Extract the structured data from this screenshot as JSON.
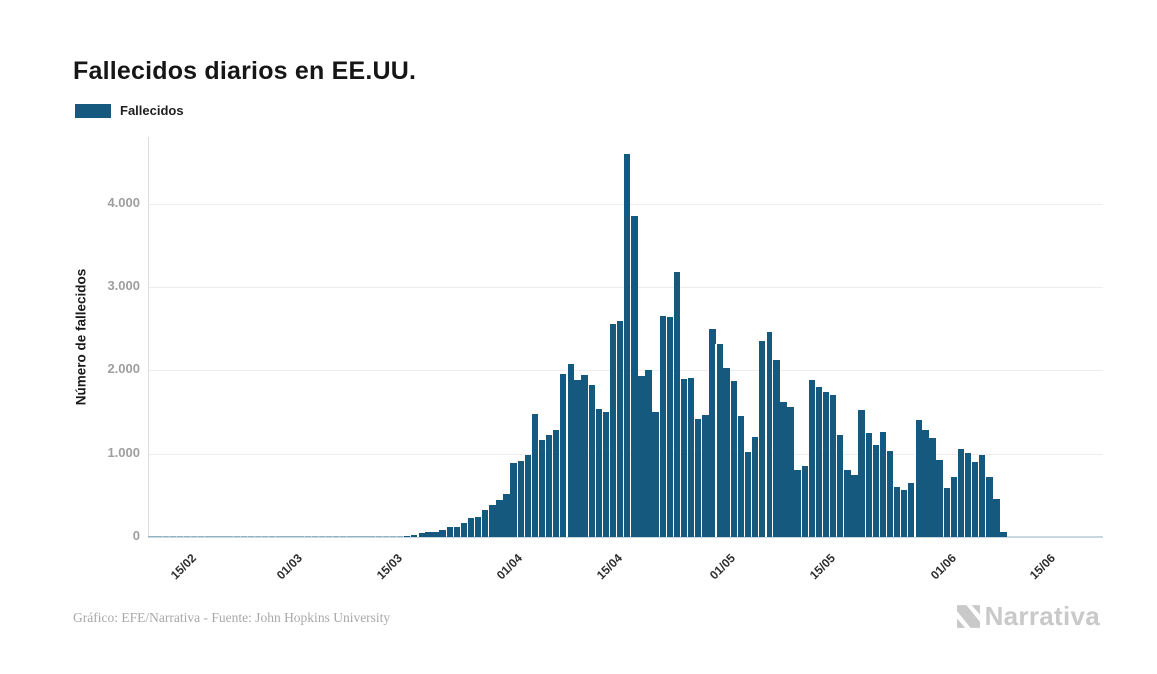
{
  "title": "Fallecidos diarios en EE.UU.",
  "legend": {
    "label": "Fallecidos",
    "color": "#15597e"
  },
  "footer": {
    "credit": "Gráfico: EFE/Narrativa - Fuente: John Hopkins University"
  },
  "branding": {
    "logo_text": "Narrativa",
    "logo_icon": "narrativa-n-mark",
    "color": "#c9c9c9"
  },
  "chart_data": {
    "type": "bar",
    "title": "Fallecidos diarios en EE.UU.",
    "xlabel": "",
    "ylabel": "Número de fallecidos",
    "series_name": "Fallecidos",
    "bar_color": "#15597e",
    "grid": true,
    "legend_position": "top-left",
    "ylim": [
      0,
      4800
    ],
    "ytick_values": [
      0,
      1000,
      2000,
      3000,
      4000
    ],
    "ytick_labels": [
      "0",
      "1.000",
      "2.000",
      "3.000",
      "4.000"
    ],
    "xticks": [
      {
        "label": "15/02",
        "day": 6
      },
      {
        "label": "01/03",
        "day": 21
      },
      {
        "label": "15/03",
        "day": 35
      },
      {
        "label": "01/04",
        "day": 52
      },
      {
        "label": "15/04",
        "day": 66
      },
      {
        "label": "01/05",
        "day": 82
      },
      {
        "label": "15/05",
        "day": 96
      },
      {
        "label": "01/06",
        "day": 113
      },
      {
        "label": "15/06",
        "day": 127
      }
    ],
    "dates": [
      "09/02",
      "10/02",
      "11/02",
      "12/02",
      "13/02",
      "14/02",
      "15/02",
      "16/02",
      "17/02",
      "18/02",
      "19/02",
      "20/02",
      "21/02",
      "22/02",
      "23/02",
      "24/02",
      "25/02",
      "26/02",
      "27/02",
      "28/02",
      "29/02",
      "01/03",
      "02/03",
      "03/03",
      "04/03",
      "05/03",
      "06/03",
      "07/03",
      "08/03",
      "09/03",
      "10/03",
      "11/03",
      "12/03",
      "13/03",
      "14/03",
      "15/03",
      "16/03",
      "17/03",
      "18/03",
      "19/03",
      "20/03",
      "21/03",
      "22/03",
      "23/03",
      "24/03",
      "25/03",
      "26/03",
      "27/03",
      "28/03",
      "29/03",
      "30/03",
      "31/03",
      "01/04",
      "02/04",
      "03/04",
      "04/04",
      "05/04",
      "06/04",
      "07/04",
      "08/04",
      "09/04",
      "10/04",
      "11/04",
      "12/04",
      "13/04",
      "14/04",
      "15/04",
      "16/04",
      "17/04",
      "18/04",
      "19/04",
      "20/04",
      "21/04",
      "22/04",
      "23/04",
      "24/04",
      "25/04",
      "26/04",
      "27/04",
      "28/04",
      "29/04",
      "30/04",
      "01/05",
      "02/05",
      "03/05",
      "04/05",
      "05/05",
      "06/05",
      "07/05",
      "08/05",
      "09/05",
      "10/05",
      "11/05",
      "12/05",
      "13/05",
      "14/05",
      "15/05",
      "16/05",
      "17/05",
      "18/05",
      "19/05",
      "20/05",
      "21/05",
      "22/05",
      "23/05",
      "24/05",
      "25/05",
      "26/05",
      "27/05",
      "28/05",
      "29/05",
      "30/05",
      "31/05",
      "01/06",
      "02/06",
      "03/06",
      "04/06",
      "05/06",
      "06/06",
      "07/06",
      "08/06"
    ],
    "values": [
      0,
      0,
      0,
      0,
      0,
      0,
      0,
      0,
      0,
      0,
      0,
      0,
      0,
      0,
      0,
      0,
      0,
      0,
      0,
      0,
      1,
      1,
      4,
      3,
      2,
      1,
      3,
      3,
      4,
      4,
      6,
      7,
      5,
      9,
      11,
      14,
      18,
      26,
      45,
      55,
      65,
      90,
      115,
      115,
      165,
      225,
      240,
      325,
      385,
      450,
      520,
      890,
      910,
      980,
      1475,
      1160,
      1220,
      1280,
      1960,
      2080,
      1890,
      1950,
      1830,
      1540,
      1500,
      2560,
      2590,
      4591,
      3857,
      1930,
      2010,
      1500,
      2650,
      2640,
      3176,
      1900,
      1910,
      1420,
      1460,
      2500,
      2320,
      2030,
      1870,
      1450,
      1020,
      1200,
      2350,
      2460,
      2130,
      1620,
      1560,
      800,
      850,
      1880,
      1800,
      1740,
      1700,
      1220,
      800,
      740,
      1520,
      1250,
      1100,
      1260,
      1030,
      600,
      560,
      650,
      1400,
      1290,
      1190,
      920,
      583,
      722,
      1062,
      1010,
      902,
      980,
      722,
      451,
      64
    ]
  }
}
